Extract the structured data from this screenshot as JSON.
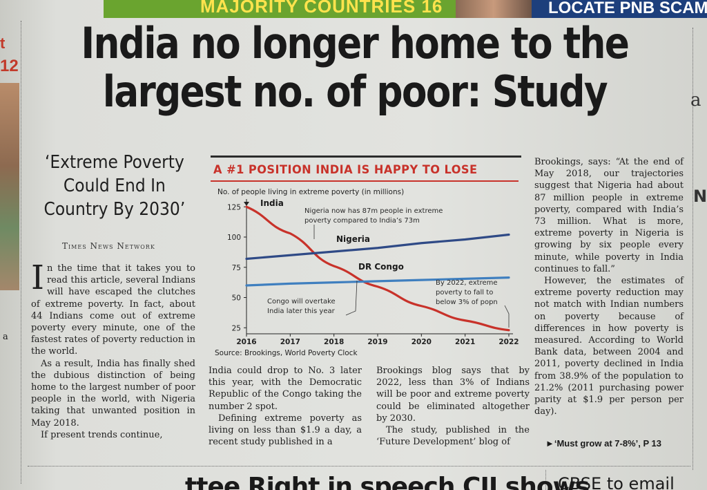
{
  "top_strip": {
    "green_text": "MAJORITY COUNTRIES 16",
    "blue_text": "LOCATE PNB SCAM"
  },
  "left_column": {
    "t": "t",
    "page_no": "12",
    "a": "a"
  },
  "headline": "India no longer home to the largest no. of poor: Study",
  "deck": "‘Extreme Poverty Could End In Country By 2030’",
  "byline": "Times News Network",
  "col1": {
    "dropcap": "I",
    "p1": "n the time that it takes you to read this article, several Indians will have escaped the clutches of extreme poverty. In fact, about 44 Indians come out of extreme poverty every minute, one of the fastest rates of poverty reduction in the world.",
    "p2": "As a result, India has finally shed the dubious distinction of being home to the largest number of poor people in the world, with Nigeria taking that unwanted position in May 2018.",
    "p3": "If present trends continue,"
  },
  "col2": {
    "p1": "India could drop to No. 3 later this year, with the Democratic Republic of the Congo taking the number 2 spot.",
    "p2": "Defining extreme poverty as living on less than $1.9 a day, a recent study published in a"
  },
  "col3": {
    "p1": "Brookings blog says that by 2022, less than 3% of Indians will be poor and extreme poverty could be eliminated altogether by 2030.",
    "p2": "The study, published in the ‘Future Development’ blog of"
  },
  "col4": {
    "p1": "Brookings, says: “At the end of May 2018, our trajectories suggest that Nigeria had about 87 million people in extreme poverty, compared with India’s 73 million. What is more, extreme poverty in Nigeria is growing by six people every minute, while poverty in India continues to fall.”",
    "p2": "However, the estimates of extreme poverty reduction may not match with Indian numbers on poverty because of differences in how poverty is measured. According to World Bank data, between 2004 and 2011, poverty declined in India from 38.9% of the population to 21.2% (2011 purchasing power parity at $1.9 per person per day).",
    "ref": "►‘Must grow at 7-8%’, P 13"
  },
  "right_partial": {
    "a": "a",
    "n": "N"
  },
  "bottom": {
    "next_headline": "...ttee Right in speech CII shows",
    "cbse": "CBSE to email"
  },
  "chart_data": {
    "type": "line",
    "title": "A #1 POSITION INDIA IS HAPPY TO LOSE",
    "ylabel": "No. of people living in extreme poverty (in millions)",
    "xlabel": "",
    "x": [
      2016,
      2017,
      2018,
      2019,
      2020,
      2021,
      2022
    ],
    "x_ticks": [
      "2016",
      "2017",
      "2018",
      "2019",
      "2020",
      "2021",
      "2022"
    ],
    "y_ticks": [
      "25",
      "50",
      "75",
      "100",
      "125"
    ],
    "ylim": [
      20,
      128
    ],
    "series": [
      {
        "name": "India",
        "color": "#c8322a",
        "values": [
          125,
          103,
          76,
          59,
          43,
          31,
          23
        ]
      },
      {
        "name": "Nigeria",
        "color": "#2f4a86",
        "values": [
          82,
          85,
          88,
          91,
          95,
          98,
          102
        ]
      },
      {
        "name": "DR Congo",
        "color": "#3f7fbf",
        "values": [
          60,
          61.5,
          62.5,
          63.5,
          64.5,
          65.5,
          66.5
        ]
      }
    ],
    "annotations": [
      "Nigeria now has 87m people in extreme poverty compared to India’s 73m",
      "Congo will overtake India later this year",
      "By 2022, extreme poverty to fall to below 3% of popn"
    ],
    "source": "Source: Brookings, World Poverty Clock",
    "grid": false
  }
}
